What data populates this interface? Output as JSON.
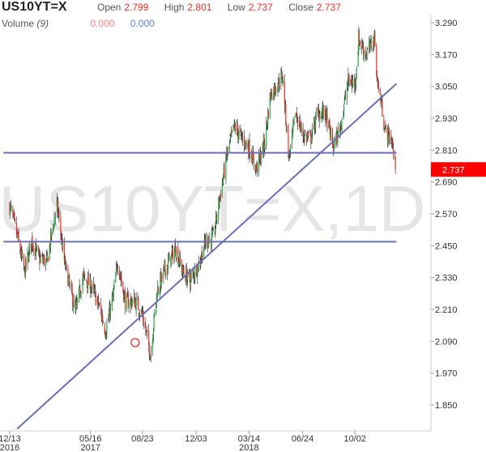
{
  "header": {
    "symbol": "US10YT=X",
    "open_label": "Open",
    "open_value": "2.799",
    "high_label": "High",
    "high_value": "2.801",
    "low_label": "Low",
    "low_value": "2.737",
    "close_label": "Close",
    "close_value": "2.737",
    "volume_label": "Volume",
    "volume_period": "(9)",
    "volume_value_1": "0.000",
    "volume_value_2": "0.000"
  },
  "chart_data": {
    "type": "candlestick",
    "watermark": "US10YT=X,1D",
    "ylim": [
      1.79,
      3.31
    ],
    "y_ticks": [
      "3.290",
      "3.170",
      "3.050",
      "2.930",
      "2.810",
      "2.690",
      "2.570",
      "2.450",
      "2.330",
      "2.210",
      "2.090",
      "1.970",
      "1.850"
    ],
    "x_ticks": [
      {
        "date": "2016-12-13",
        "label": "12/13",
        "sublabel": "2016"
      },
      {
        "date": "2017-05-16",
        "label": "05/16",
        "sublabel": "2017"
      },
      {
        "date": "2017-08-23",
        "label": "08/23",
        "sublabel": ""
      },
      {
        "date": "2017-12-03",
        "label": "12/03",
        "sublabel": ""
      },
      {
        "date": "2018-03-14",
        "label": "03/14",
        "sublabel": "2018"
      },
      {
        "date": "2018-06-24",
        "label": "06/24",
        "sublabel": ""
      },
      {
        "date": "2018-10-02",
        "label": "10/02",
        "sublabel": ""
      }
    ],
    "x_range": [
      "2016-12-13",
      "2018-11-20"
    ],
    "last_price_label": "2.737",
    "close_path": [
      [
        "2016-12-13",
        2.6
      ],
      [
        "2016-12-28",
        2.48
      ],
      [
        "2017-01-10",
        2.35
      ],
      [
        "2017-01-24",
        2.47
      ],
      [
        "2017-02-07",
        2.4
      ],
      [
        "2017-02-22",
        2.39
      ],
      [
        "2017-03-13",
        2.61
      ],
      [
        "2017-03-27",
        2.39
      ],
      [
        "2017-04-17",
        2.2
      ],
      [
        "2017-05-01",
        2.33
      ],
      [
        "2017-05-16",
        2.3
      ],
      [
        "2017-05-31",
        2.23
      ],
      [
        "2017-06-14",
        2.13
      ],
      [
        "2017-06-28",
        2.26
      ],
      [
        "2017-07-07",
        2.39
      ],
      [
        "2017-07-21",
        2.24
      ],
      [
        "2017-08-09",
        2.24
      ],
      [
        "2017-08-23",
        2.19
      ],
      [
        "2017-09-07",
        2.04
      ],
      [
        "2017-09-20",
        2.28
      ],
      [
        "2017-10-05",
        2.36
      ],
      [
        "2017-10-25",
        2.44
      ],
      [
        "2017-11-08",
        2.35
      ],
      [
        "2017-11-22",
        2.32
      ],
      [
        "2017-12-08",
        2.38
      ],
      [
        "2017-12-22",
        2.47
      ],
      [
        "2018-01-05",
        2.48
      ],
      [
        "2018-01-17",
        2.63
      ],
      [
        "2018-01-31",
        2.79
      ],
      [
        "2018-02-14",
        2.9
      ],
      [
        "2018-02-26",
        2.86
      ],
      [
        "2018-03-14",
        2.82
      ],
      [
        "2018-03-28",
        2.74
      ],
      [
        "2018-04-12",
        2.83
      ],
      [
        "2018-04-24",
        3.02
      ],
      [
        "2018-05-17",
        3.09
      ],
      [
        "2018-05-29",
        2.78
      ],
      [
        "2018-06-11",
        2.95
      ],
      [
        "2018-06-24",
        2.87
      ],
      [
        "2018-07-09",
        2.85
      ],
      [
        "2018-07-23",
        2.95
      ],
      [
        "2018-08-06",
        2.95
      ],
      [
        "2018-08-22",
        2.82
      ],
      [
        "2018-09-04",
        2.9
      ],
      [
        "2018-09-19",
        3.07
      ],
      [
        "2018-10-02",
        3.06
      ],
      [
        "2018-10-09",
        3.23
      ],
      [
        "2018-10-23",
        3.17
      ],
      [
        "2018-11-08",
        3.23
      ],
      [
        "2018-11-14",
        3.06
      ],
      [
        "2018-11-20",
        3.0
      ],
      [
        "2018-11-29",
        2.88
      ],
      [
        "2018-12-11",
        2.85
      ],
      [
        "2018-12-18",
        2.737
      ]
    ],
    "trendlines": [
      {
        "name": "support-rising",
        "from": [
          "2016-12-27",
          1.76
        ],
        "to": [
          "2018-12-20",
          3.06
        ]
      },
      {
        "name": "resistance-upper",
        "from": [
          "2016-12-01",
          2.8
        ],
        "to": [
          "2018-12-20",
          2.8
        ]
      },
      {
        "name": "support-lower",
        "from": [
          "2016-12-01",
          2.465
        ],
        "to": [
          "2018-12-20",
          2.465
        ]
      }
    ],
    "marker": {
      "date": "2017-08-09",
      "value": 2.085,
      "shape": "circle"
    },
    "colors": {
      "up": "#2aa84a",
      "down": "#e8302a",
      "wick": "#222222",
      "trendline": "#6b6fb3",
      "price_badge": "#ff0000",
      "watermark": "#e5e5e5"
    }
  }
}
